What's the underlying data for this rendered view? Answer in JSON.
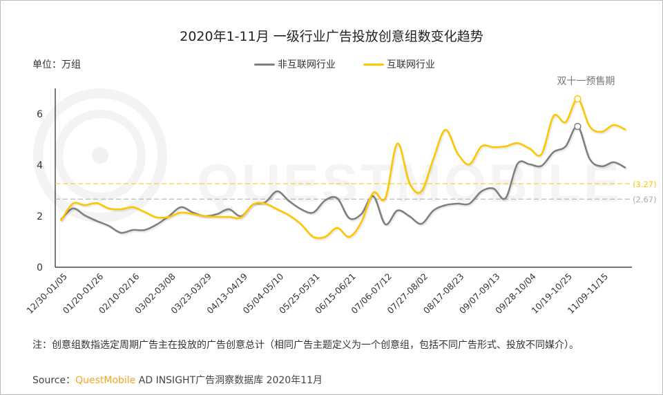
{
  "title": "2020年1-11月 一级行业广告投放创意组数变化趋势",
  "unit_label": "单位：万组",
  "note": "注：创意组数指选定周期广告主在投放的广告创意总计（相同广告主题定义为一个创意组，包括不同广告形式、投放不同媒介）。",
  "source": {
    "prefix": "Source：",
    "brand": "QuestMobile",
    "rest": " AD INSIGHT广告洞察数据库 2020年11月"
  },
  "colors": {
    "non_internet": "#808080",
    "internet": "#ffc600",
    "brand": "#f5a623"
  },
  "chart_data": {
    "type": "line",
    "title": "2020年1-11月 一级行业广告投放创意组数变化趋势",
    "ylabel": "单位：万组",
    "ylim": [
      0,
      7
    ],
    "yticks": [
      0,
      2,
      4,
      6
    ],
    "grid": false,
    "legend_placement": "top-center",
    "x": [
      "12/30",
      "01/06",
      "01/13",
      "01/20",
      "01/27",
      "02/03",
      "02/10",
      "02/17",
      "02/24",
      "03/02",
      "03/09",
      "03/16",
      "03/23",
      "03/30",
      "04/06",
      "04/13",
      "04/20",
      "04/27",
      "05/04",
      "05/11",
      "05/18",
      "05/25",
      "06/01",
      "06/08",
      "06/15",
      "06/22",
      "06/29",
      "07/06",
      "07/13",
      "07/20",
      "07/27",
      "08/03",
      "08/10",
      "08/17",
      "08/24",
      "08/31",
      "09/07",
      "09/14",
      "09/21",
      "09/28",
      "10/05",
      "10/12",
      "10/19",
      "10/26",
      "11/02",
      "11/09",
      "11/16",
      "11/23"
    ],
    "xtick_labels": [
      "12/30-01/05",
      "01/20-01/26",
      "02/10-02/16",
      "03/02-03/08",
      "03/23-03/29",
      "04/13-04/19",
      "05/04-05/10",
      "05/25-05/31",
      "06/15-06/21",
      "07/06-07/12",
      "07/27-08/02",
      "08/17-08/23",
      "09/07-09/13",
      "09/28-10/04",
      "10/19-10/25",
      "11/09-11/15"
    ],
    "xtick_every": 3,
    "series": [
      {
        "name": "非互联网行业",
        "color": "#808080",
        "values": [
          1.86,
          2.3,
          2.03,
          1.81,
          1.62,
          1.35,
          1.46,
          1.46,
          1.68,
          2.0,
          2.35,
          2.14,
          2.0,
          2.08,
          2.27,
          2.0,
          2.46,
          2.54,
          2.97,
          2.59,
          2.27,
          2.14,
          2.62,
          2.7,
          1.92,
          2.08,
          2.78,
          1.68,
          2.22,
          2.0,
          1.7,
          2.22,
          2.43,
          2.49,
          2.49,
          2.97,
          3.08,
          2.7,
          4.05,
          4.03,
          3.97,
          4.51,
          4.73,
          5.51,
          4.24,
          3.95,
          4.11,
          3.89
        ]
      },
      {
        "name": "互联网行业",
        "color": "#ffc600",
        "values": [
          1.81,
          2.49,
          2.43,
          2.51,
          2.3,
          2.27,
          2.35,
          2.16,
          1.95,
          1.97,
          2.14,
          2.08,
          2.0,
          1.97,
          1.97,
          1.95,
          2.46,
          2.49,
          2.27,
          2.03,
          1.68,
          1.19,
          1.19,
          1.54,
          1.19,
          1.76,
          2.92,
          2.7,
          4.84,
          3.3,
          2.97,
          4.24,
          5.38,
          4.46,
          4.03,
          4.73,
          4.7,
          4.73,
          4.86,
          4.65,
          4.43,
          5.92,
          5.68,
          6.59,
          5.51,
          5.3,
          5.57,
          5.38
        ]
      }
    ],
    "reference_lines": [
      {
        "value": 3.27,
        "label": "(3.27)",
        "color": "#ffc600"
      },
      {
        "value": 2.67,
        "label": "(2.67)",
        "color": "#aaaaaa"
      }
    ],
    "annotation": {
      "text": "双十一预售期",
      "at_index": 43
    }
  }
}
